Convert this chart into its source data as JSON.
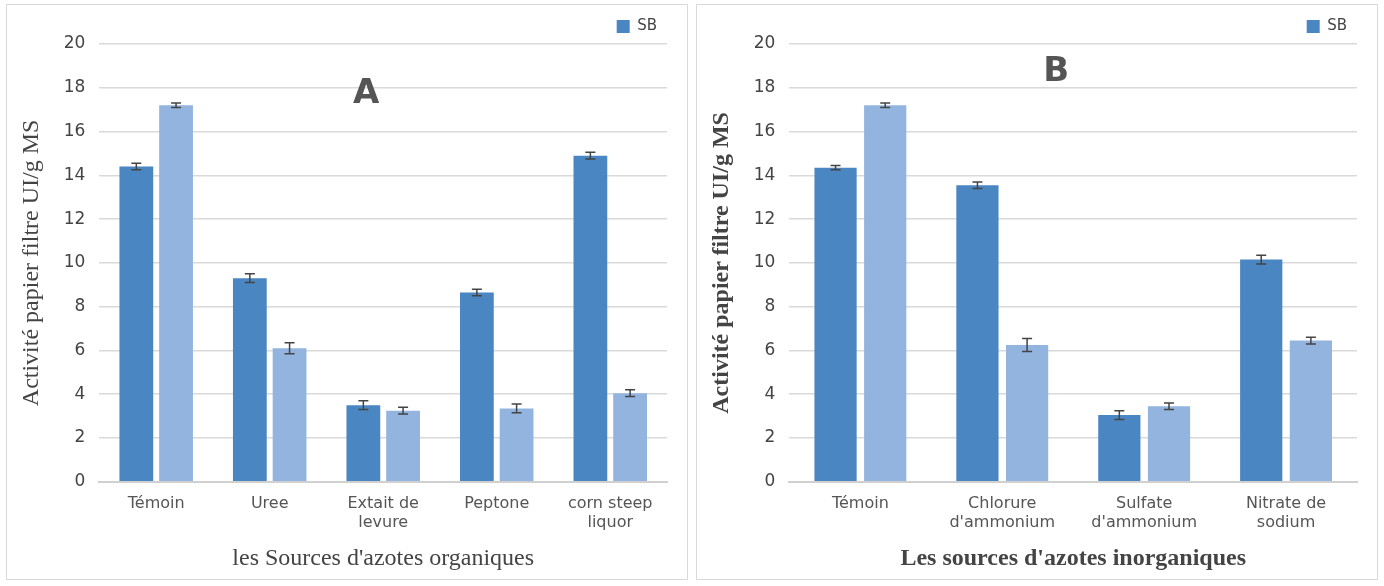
{
  "chart_data": [
    {
      "type": "bar",
      "title": "A",
      "xlabel": "les Sources d'azotes organiques",
      "ylabel": "Activité papier filtre UI/g MS",
      "categories": [
        "Témoin",
        "Uree",
        "Extait de levure",
        "Peptone",
        "corn steep liquor"
      ],
      "series": [
        {
          "name": "SB",
          "color": "#4a86c1",
          "values": [
            14.4,
            9.3,
            3.5,
            8.65,
            14.9
          ],
          "errors": [
            0.15,
            0.2,
            0.2,
            0.15,
            0.15
          ]
        },
        {
          "color": "#92b4de",
          "values": [
            17.2,
            6.1,
            3.25,
            3.35,
            4.05
          ],
          "errors": [
            0.1,
            0.25,
            0.15,
            0.2,
            0.15
          ]
        }
      ],
      "ylim": [
        0,
        20
      ],
      "yticks": [
        0,
        2,
        4,
        6,
        8,
        10,
        12,
        14,
        16,
        18,
        20
      ],
      "grid": "y",
      "legend": "top right"
    },
    {
      "type": "bar",
      "title": "B",
      "xlabel": "Les sources d'azotes inorganiques",
      "ylabel": "Activité papier filtre UI/g MS",
      "categories": [
        "Témoin",
        "Chlorure d'ammonium",
        "Sulfate d'ammonium",
        "Nitrate de sodium"
      ],
      "series": [
        {
          "name": "SB",
          "color": "#4a86c1",
          "values": [
            14.35,
            13.55,
            3.05,
            10.15
          ],
          "errors": [
            0.1,
            0.15,
            0.2,
            0.2
          ]
        },
        {
          "color": "#92b4de",
          "values": [
            17.2,
            6.25,
            3.45,
            6.45
          ],
          "errors": [
            0.1,
            0.3,
            0.15,
            0.15
          ]
        }
      ],
      "ylim": [
        0,
        20
      ],
      "yticks": [
        0,
        2,
        4,
        6,
        8,
        10,
        12,
        14,
        16,
        18,
        20
      ],
      "grid": "y",
      "legend": "top right"
    }
  ]
}
